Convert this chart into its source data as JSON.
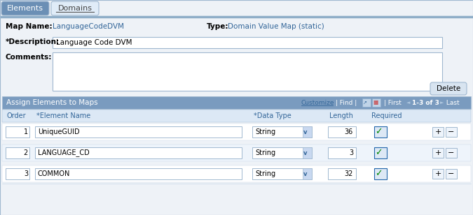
{
  "tab_elements": "Elements",
  "tab_domains": "Domains",
  "map_name_label": "Map Name:",
  "map_name_value": "LanguageCodeDVM",
  "type_label": "Type:",
  "type_value": "Domain Value Map (static)",
  "desc_label": "*Description:",
  "desc_value": "Language Code DVM",
  "comments_label": "Comments:",
  "delete_btn": "Delete",
  "table_title": "Assign Elements to Maps",
  "col_order": "Order",
  "col_element": "*Element Name",
  "col_datatype": "*Data Type",
  "col_length": "Length",
  "col_required": "Required",
  "rows": [
    {
      "order": "1",
      "element": "UniqueGUID",
      "datatype": "String",
      "length": "36"
    },
    {
      "order": "2",
      "element": "LANGUAGE_CD",
      "datatype": "String",
      "length": "3"
    },
    {
      "order": "3",
      "element": "COMMON",
      "datatype": "String",
      "length": "32"
    }
  ],
  "bg_color": "#eef2f7",
  "tab_active_bg": "#6b8fb5",
  "tab_active_fg": "#ffffff",
  "tab_inactive_bg": "#e0ecf8",
  "tab_inactive_fg": "#444444",
  "divider_color": "#8faec8",
  "header_bg": "#7a9bbf",
  "header_fg": "#ffffff",
  "col_header_fg": "#336699",
  "row_bg1": "#ffffff",
  "row_bg2": "#eef4fb",
  "row_sep_color": "#c8d8e8",
  "border_color": "#a0b8d0",
  "label_color": "#000000",
  "value_color": "#336699",
  "input_bg": "#ffffff",
  "input_border": "#a0b8d0",
  "btn_bg": "#d8e4f0",
  "btn_border": "#a0b8d0",
  "checkbox_bg": "#dde8f5",
  "checkbox_fg": "#2266aa",
  "checkbox_check": "#008800",
  "plus_bg": "#eef4fb",
  "plus_border": "#a0b8d0",
  "link_color": "#336699"
}
